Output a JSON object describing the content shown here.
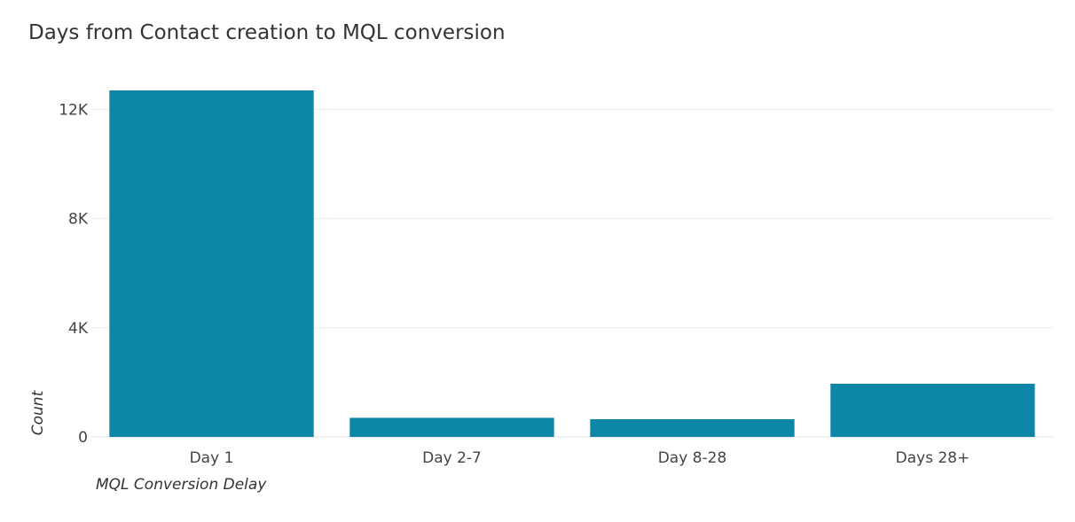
{
  "chart_data": {
    "type": "bar",
    "title": "Days from Contact creation to MQL conversion",
    "xlabel": "MQL Conversion Delay",
    "ylabel": "Count",
    "categories": [
      "Day 1",
      "Day 2-7",
      "Day 8-28",
      "Days 28+"
    ],
    "values": [
      12700,
      700,
      650,
      1950
    ],
    "ylim": [
      0,
      12700
    ],
    "yticks": [
      0,
      4000,
      8000,
      12000
    ],
    "ytick_labels": [
      "0",
      "4K",
      "8K",
      "12K"
    ],
    "grid": true,
    "legend": "none",
    "colors": {
      "bar": "#0e86a8",
      "grid": "#ececec",
      "axis": "#e0e0e0"
    }
  }
}
